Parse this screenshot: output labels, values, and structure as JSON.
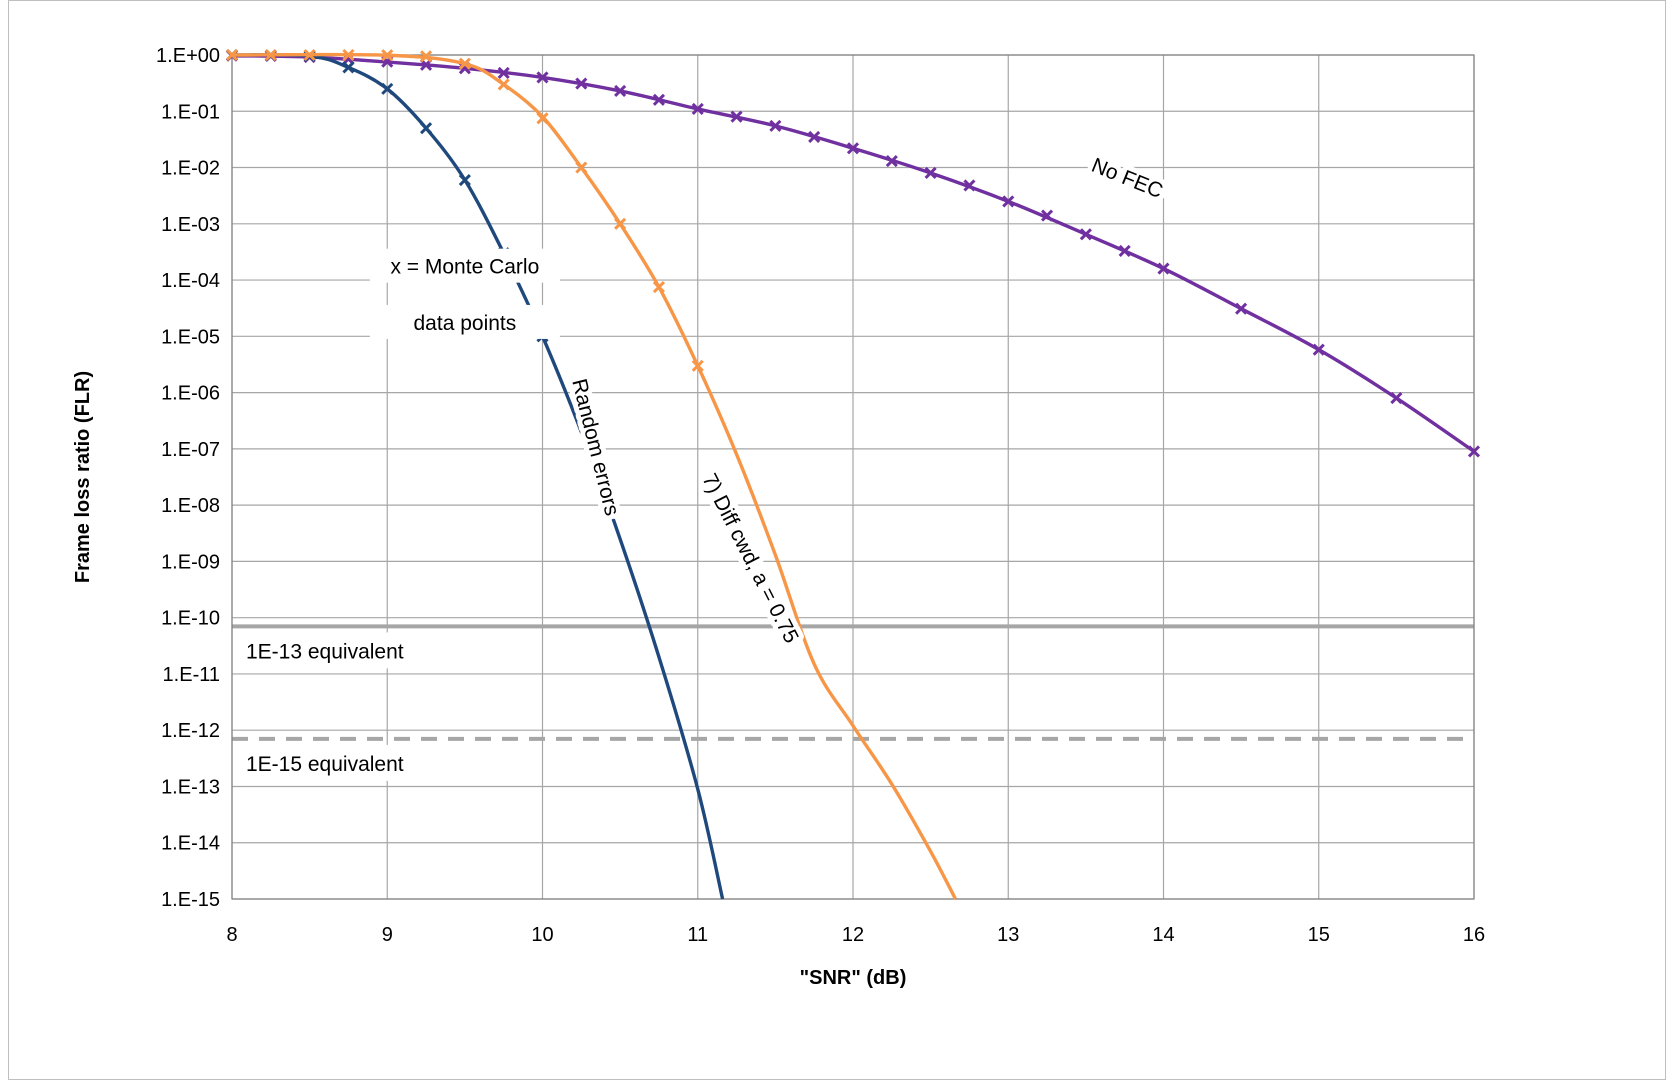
{
  "chart_data": {
    "type": "line",
    "xlabel": "\"SNR\" (dB)",
    "ylabel": "Frame loss ratio (FLR)",
    "x_scale": "linear",
    "y_scale": "log",
    "xlim": [
      8,
      16
    ],
    "ylim": [
      1e-15,
      1
    ],
    "grid": true,
    "x_ticks": [
      8,
      9,
      10,
      11,
      12,
      13,
      14,
      15,
      16
    ],
    "x_tick_labels": [
      "8",
      "9",
      "10",
      "11",
      "12",
      "13",
      "14",
      "15",
      "16"
    ],
    "y_ticks": [
      1,
      0.1,
      0.01,
      0.001,
      0.0001,
      1e-05,
      1e-06,
      1e-07,
      1e-08,
      1e-09,
      1e-10,
      1e-11,
      1e-12,
      1e-13,
      1e-14,
      1e-15
    ],
    "y_tick_labels": [
      "1.E+00",
      "1.E-01",
      "1.E-02",
      "1.E-03",
      "1.E-04",
      "1.E-05",
      "1.E-06",
      "1.E-07",
      "1.E-08",
      "1.E-09",
      "1.E-10",
      "1.E-11",
      "1.E-12",
      "1.E-13",
      "1.E-14",
      "1.E-15"
    ],
    "series": [
      {
        "name": "No FEC",
        "color": "#7030A0",
        "curve": {
          "x": [
            8,
            8.5,
            9,
            9.5,
            10,
            10.5,
            11,
            11.5,
            12,
            12.5,
            13,
            13.5,
            14,
            14.5,
            15,
            15.5,
            16
          ],
          "y": [
            0.97,
            0.92,
            0.75,
            0.58,
            0.4,
            0.23,
            0.11,
            0.055,
            0.022,
            0.008,
            0.0025,
            0.00065,
            0.00016,
            3.1e-05,
            5.8e-06,
            8e-07,
            9e-08
          ]
        },
        "points": {
          "x": [
            8,
            8.25,
            8.5,
            8.75,
            9,
            9.25,
            9.5,
            9.75,
            10,
            10.25,
            10.5,
            10.75,
            11,
            11.25,
            11.5,
            11.75,
            12,
            12.25,
            12.5,
            12.75,
            13,
            13.25,
            13.5,
            13.75,
            14,
            14.5,
            15,
            15.5,
            16
          ],
          "y": [
            0.97,
            0.96,
            0.92,
            0.85,
            0.76,
            0.67,
            0.58,
            0.48,
            0.4,
            0.31,
            0.23,
            0.16,
            0.11,
            0.08,
            0.055,
            0.035,
            0.022,
            0.013,
            0.008,
            0.0048,
            0.0025,
            0.0014,
            0.00065,
            0.00033,
            0.00016,
            3.1e-05,
            5.8e-06,
            8e-07,
            9e-08
          ]
        }
      },
      {
        "name": "Random errors",
        "color": "#1F497D",
        "curve": {
          "x": [
            8,
            8.5,
            8.75,
            9,
            9.25,
            9.5,
            9.75,
            10,
            10.25,
            10.5,
            10.75,
            11,
            11.16
          ],
          "y": [
            1,
            0.96,
            0.6,
            0.25,
            0.05,
            0.006,
            0.0003,
            1e-05,
            2e-07,
            2.5e-09,
            2e-11,
            9e-14,
            1e-15
          ]
        },
        "points": {
          "x": [
            8,
            8.25,
            8.5,
            8.75,
            9,
            9.25,
            9.5,
            9.75,
            10
          ],
          "y": [
            1,
            0.99,
            0.96,
            0.6,
            0.25,
            0.05,
            0.006,
            0.0003,
            1e-05
          ]
        }
      },
      {
        "name": "7) Diff cwd, a = 0.75",
        "color": "#F79646",
        "curve": {
          "x": [
            8,
            9,
            9.5,
            9.75,
            10,
            10.25,
            10.5,
            10.75,
            11,
            11.25,
            11.5,
            11.75,
            12,
            12.25,
            12.5,
            12.66
          ],
          "y": [
            1,
            0.99,
            0.7,
            0.3,
            0.08,
            0.01,
            0.001,
            7.5e-05,
            3e-06,
            8e-08,
            1.3e-09,
            1.5e-11,
            1.2e-12,
            1.1e-13,
            7e-15,
            1e-15
          ]
        },
        "points": {
          "x": [
            8,
            8.25,
            8.5,
            8.75,
            9,
            9.25,
            9.5,
            9.75,
            10,
            10.25,
            10.5,
            10.75,
            11
          ],
          "y": [
            1,
            1,
            1,
            1,
            0.99,
            0.95,
            0.7,
            0.3,
            0.075,
            0.01,
            0.001,
            7.5e-05,
            3e-06
          ]
        }
      }
    ],
    "reference_lines": [
      {
        "label": "1E-13 equivalent",
        "y": 7e-11,
        "style": "solid",
        "color": "#A6A6A6"
      },
      {
        "label": "1E-15 equivalent",
        "y": 7e-13,
        "style": "dashed",
        "color": "#A6A6A6"
      }
    ],
    "annotations": [
      {
        "text": "x = Monte Carlo",
        "x": 9.5,
        "y": 0.00013
      },
      {
        "text": "data points",
        "x": 9.5,
        "y": 1.3e-05
      },
      {
        "text": "Random errors",
        "x": 10.3,
        "y": 1e-07,
        "color": "#1F497D",
        "rotation": 76
      },
      {
        "text": "7) Diff cwd, a = 0.75",
        "x": 11.3,
        "y": 1e-09,
        "color": "#F79646",
        "rotation": 63
      },
      {
        "text": "No FEC",
        "x": 13.75,
        "y": 0.005,
        "color": "#7030A0",
        "rotation": 22
      }
    ]
  }
}
